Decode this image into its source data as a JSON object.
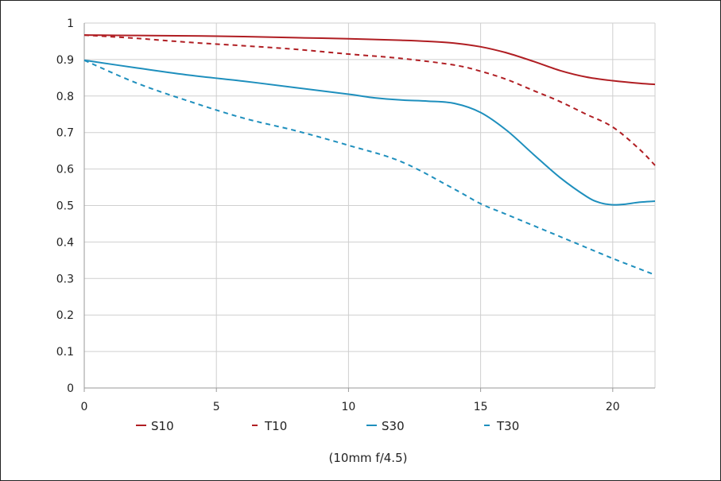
{
  "chart_data": {
    "type": "line",
    "title": "",
    "xlabel": "",
    "ylabel": "",
    "caption": "(10mm f/4.5)",
    "xlim": [
      0,
      21.6
    ],
    "ylim": [
      0,
      1
    ],
    "x_ticks": [
      0,
      5,
      10,
      15,
      20
    ],
    "y_ticks": [
      0,
      0.1,
      0.2,
      0.3,
      0.4,
      0.5,
      0.6,
      0.7,
      0.8,
      0.9,
      1
    ],
    "grid": true,
    "legend_position": "bottom",
    "series": [
      {
        "name": "S10",
        "color": "#b01e23",
        "style": "solid",
        "x": [
          0,
          2,
          4,
          6,
          8,
          10,
          12,
          13,
          14,
          15,
          16,
          17,
          18,
          19,
          20,
          21,
          21.6
        ],
        "y": [
          0.967,
          0.966,
          0.965,
          0.963,
          0.96,
          0.957,
          0.953,
          0.95,
          0.945,
          0.935,
          0.918,
          0.895,
          0.87,
          0.852,
          0.842,
          0.835,
          0.832
        ]
      },
      {
        "name": "T10",
        "color": "#b01e23",
        "style": "dashed",
        "x": [
          0,
          2,
          4,
          6,
          8,
          10,
          12,
          14,
          15,
          16,
          17,
          18,
          19,
          20,
          21,
          21.6
        ],
        "y": [
          0.967,
          0.958,
          0.947,
          0.938,
          0.928,
          0.915,
          0.903,
          0.885,
          0.868,
          0.845,
          0.815,
          0.785,
          0.75,
          0.715,
          0.655,
          0.61
        ]
      },
      {
        "name": "S30",
        "color": "#1e8fbd",
        "style": "solid",
        "x": [
          0,
          2,
          4,
          6,
          8,
          10,
          11,
          12,
          13,
          14,
          15,
          16,
          17,
          18,
          19,
          19.5,
          20,
          20.5,
          21,
          21.6
        ],
        "y": [
          0.898,
          0.877,
          0.857,
          0.841,
          0.823,
          0.805,
          0.795,
          0.789,
          0.786,
          0.78,
          0.755,
          0.705,
          0.64,
          0.577,
          0.525,
          0.508,
          0.502,
          0.504,
          0.509,
          0.512
        ]
      },
      {
        "name": "T30",
        "color": "#1e8fbd",
        "style": "dashed",
        "x": [
          0,
          2,
          4,
          6,
          8,
          10,
          12,
          14,
          15,
          16,
          18,
          20,
          21.6
        ],
        "y": [
          0.898,
          0.835,
          0.785,
          0.74,
          0.705,
          0.665,
          0.62,
          0.545,
          0.505,
          0.475,
          0.415,
          0.355,
          0.31
        ]
      }
    ]
  }
}
